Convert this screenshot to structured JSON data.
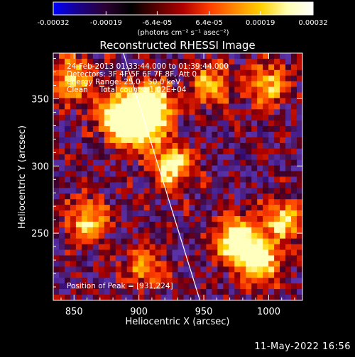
{
  "colorbar": {
    "tick_labels": [
      "-0.00032",
      "-0.00019",
      "-6.4e-05",
      "6.4e-05",
      "0.00019",
      "0.00032"
    ],
    "tick_values": [
      -0.00032,
      -0.00019,
      -6.4e-05,
      6.4e-05,
      0.00019,
      0.00032
    ],
    "range": [
      -0.00032,
      0.00032
    ],
    "unit_label": "(photons cm⁻² s⁻¹ asec⁻²)",
    "colors": [
      "#0000ff",
      "#1a0088",
      "#2b0033",
      "#000000",
      "#5a0000",
      "#b00000",
      "#ff3c00",
      "#ff8a00",
      "#ffd100",
      "#ffffb0",
      "#ffffff"
    ]
  },
  "chart_data": {
    "type": "heatmap",
    "title": "Reconstructed RHESSI Image",
    "xlabel": "Heliocentric X (arcsec)",
    "ylabel": "Heliocentric Y (arcsec)",
    "xlim": [
      834,
      1026
    ],
    "ylim": [
      200,
      384
    ],
    "x_ticks": [
      850,
      900,
      950,
      1000
    ],
    "y_ticks": [
      250,
      300,
      350
    ],
    "colormap": "blue-black-red-yellow-white",
    "bright_regions": [
      {
        "x": 908,
        "y": 345,
        "level": 1.0
      },
      {
        "x": 900,
        "y": 330,
        "level": 0.9
      },
      {
        "x": 885,
        "y": 337,
        "level": 0.8
      },
      {
        "x": 925,
        "y": 300,
        "level": 0.7
      },
      {
        "x": 975,
        "y": 245,
        "level": 0.85
      },
      {
        "x": 992,
        "y": 228,
        "level": 0.75
      },
      {
        "x": 1010,
        "y": 260,
        "level": 0.6
      },
      {
        "x": 850,
        "y": 365,
        "level": 0.6
      },
      {
        "x": 955,
        "y": 360,
        "level": 0.5
      },
      {
        "x": 1000,
        "y": 360,
        "level": 0.55
      },
      {
        "x": 860,
        "y": 260,
        "level": 0.55
      },
      {
        "x": 905,
        "y": 225,
        "level": 0.45
      }
    ],
    "limb_line": [
      {
        "x": 888,
        "y": 384
      },
      {
        "x": 947,
        "y": 200
      }
    ],
    "peak": {
      "x": 931,
      "y": 224
    }
  },
  "annotations": {
    "time_range": "24-Feb-2013 01:33:44.000 to 01:39:44.000",
    "detectors": "Detectors: 3F 4F 5F 6F 7F 8F, Att 0",
    "energy": "Energy Range: 25.0 - 50.0 keV",
    "clean": "Clean     Total counts: 1.02E+04",
    "peak": "Position of Peak = [931,224]"
  },
  "footer_date": "11-May-2022 16:56"
}
